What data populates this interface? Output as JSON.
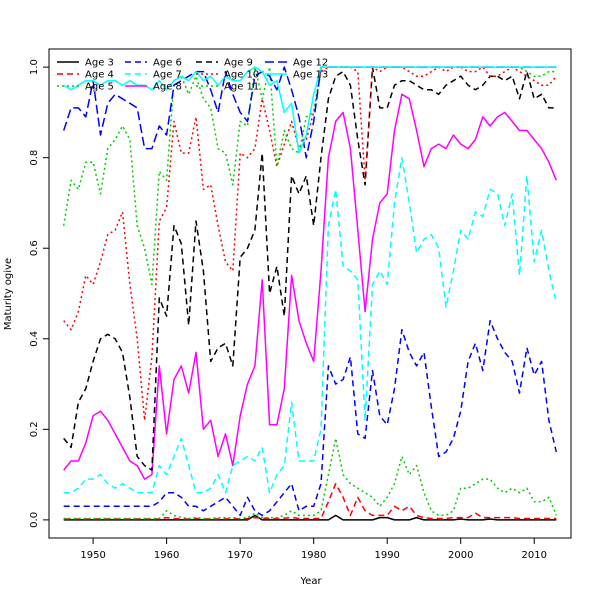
{
  "chart_data": {
    "type": "line",
    "title": "",
    "xlabel": "Year",
    "ylabel": "Maturity ogive",
    "xlim": [
      1944,
      2015
    ],
    "ylim": [
      -0.04,
      1.04
    ],
    "xticks": [
      1950,
      1960,
      1970,
      1980,
      1990,
      2000,
      2010
    ],
    "yticks": [
      0.0,
      0.2,
      0.4,
      0.6,
      0.8,
      1.0
    ],
    "ytick_labels": [
      "0.0",
      "0.2",
      "0.4",
      "0.6",
      "0.8",
      "1.0"
    ],
    "grid": false,
    "legend_position": "top-left",
    "years": [
      1946,
      1947,
      1948,
      1949,
      1950,
      1951,
      1952,
      1953,
      1954,
      1955,
      1956,
      1957,
      1958,
      1959,
      1960,
      1961,
      1962,
      1963,
      1964,
      1965,
      1966,
      1967,
      1968,
      1969,
      1970,
      1971,
      1972,
      1973,
      1974,
      1975,
      1976,
      1977,
      1978,
      1979,
      1980,
      1981,
      1982,
      1983,
      1984,
      1985,
      1986,
      1987,
      1988,
      1989,
      1990,
      1991,
      1992,
      1993,
      1994,
      1995,
      1996,
      1997,
      1998,
      1999,
      2000,
      2001,
      2002,
      2003,
      2004,
      2005,
      2006,
      2007,
      2008,
      2009,
      2010,
      2011,
      2012,
      2013
    ],
    "series": [
      {
        "name": "Age 3",
        "color": "#000000",
        "dash": "solid",
        "values": [
          0,
          0,
          0,
          0,
          0,
          0,
          0,
          0,
          0,
          0,
          0,
          0,
          0,
          0,
          0,
          0,
          0,
          0,
          0,
          0,
          0,
          0,
          0,
          0,
          0,
          0,
          0.01,
          0,
          0,
          0,
          0,
          0,
          0,
          0,
          0,
          0,
          0,
          0.01,
          0,
          0,
          0,
          0,
          0,
          0.005,
          0.005,
          0,
          0,
          0,
          0.005,
          0,
          0,
          0,
          0,
          0,
          0.002,
          0,
          0,
          0,
          0.002,
          0,
          0,
          0,
          0,
          0,
          0,
          0,
          0,
          0
        ]
      },
      {
        "name": "Age 4",
        "color": "#ff0000",
        "dash": "dashed",
        "values": [
          0.002,
          0.002,
          0.002,
          0.002,
          0.002,
          0.002,
          0.002,
          0.002,
          0.002,
          0.002,
          0.002,
          0.002,
          0.002,
          0.002,
          0.005,
          0.003,
          0.002,
          0.002,
          0.003,
          0.002,
          0.002,
          0.002,
          0.002,
          0.003,
          0.002,
          0.003,
          0.005,
          0.004,
          0.003,
          0.003,
          0.004,
          0.005,
          0.003,
          0.003,
          0.003,
          0.003,
          0.04,
          0.08,
          0.05,
          0.01,
          0.05,
          0.02,
          0.01,
          0.01,
          0.01,
          0.03,
          0.02,
          0.03,
          0.01,
          0.005,
          0.003,
          0.003,
          0.003,
          0.005,
          0.005,
          0.005,
          0.015,
          0.005,
          0.005,
          0.005,
          0.005,
          0.005,
          0.003,
          0.003,
          0.003,
          0.003,
          0.003,
          0.003
        ]
      },
      {
        "name": "Age 5",
        "color": "#00cc00",
        "dash": "dotted",
        "values": [
          0.003,
          0.003,
          0.003,
          0.003,
          0.003,
          0.003,
          0.003,
          0.003,
          0.003,
          0.003,
          0.003,
          0.003,
          0.003,
          0.003,
          0.02,
          0.01,
          0.005,
          0.003,
          0.005,
          0.003,
          0.003,
          0.005,
          0.005,
          0.005,
          0.003,
          0.005,
          0.015,
          0.005,
          0.005,
          0.005,
          0.01,
          0.02,
          0.01,
          0.01,
          0.01,
          0.02,
          0.1,
          0.18,
          0.1,
          0.08,
          0.07,
          0.06,
          0.05,
          0.03,
          0.05,
          0.08,
          0.14,
          0.1,
          0.12,
          0.06,
          0.02,
          0.01,
          0.01,
          0.02,
          0.07,
          0.07,
          0.08,
          0.09,
          0.09,
          0.07,
          0.06,
          0.07,
          0.06,
          0.07,
          0.04,
          0.04,
          0.05,
          0.01
        ]
      },
      {
        "name": "Age 6",
        "color": "#0000ff",
        "dash": "dashed",
        "values": [
          0.03,
          0.03,
          0.03,
          0.03,
          0.03,
          0.03,
          0.03,
          0.03,
          0.03,
          0.03,
          0.03,
          0.03,
          0.03,
          0.04,
          0.06,
          0.06,
          0.05,
          0.03,
          0.03,
          0.02,
          0.03,
          0.04,
          0.05,
          0.03,
          0.01,
          0.05,
          0.02,
          0.01,
          0.02,
          0.04,
          0.06,
          0.08,
          0.02,
          0.03,
          0.03,
          0.08,
          0.34,
          0.3,
          0.31,
          0.36,
          0.19,
          0.18,
          0.33,
          0.23,
          0.21,
          0.29,
          0.42,
          0.37,
          0.34,
          0.37,
          0.25,
          0.14,
          0.15,
          0.18,
          0.24,
          0.35,
          0.39,
          0.33,
          0.44,
          0.4,
          0.37,
          0.35,
          0.28,
          0.38,
          0.32,
          0.35,
          0.22,
          0.15
        ]
      },
      {
        "name": "Age 7",
        "color": "#00ffff",
        "dash": "dashed",
        "values": [
          0.06,
          0.06,
          0.07,
          0.09,
          0.09,
          0.1,
          0.08,
          0.07,
          0.08,
          0.07,
          0.06,
          0.06,
          0.06,
          0.12,
          0.1,
          0.14,
          0.18,
          0.12,
          0.06,
          0.06,
          0.07,
          0.1,
          0.06,
          0.12,
          0.13,
          0.14,
          0.13,
          0.16,
          0.06,
          0.1,
          0.12,
          0.26,
          0.13,
          0.13,
          0.13,
          0.2,
          0.65,
          0.73,
          0.56,
          0.55,
          0.53,
          0.22,
          0.52,
          0.55,
          0.52,
          0.7,
          0.8,
          0.7,
          0.59,
          0.62,
          0.63,
          0.6,
          0.47,
          0.55,
          0.64,
          0.62,
          0.68,
          0.67,
          0.73,
          0.72,
          0.65,
          0.72,
          0.54,
          0.76,
          0.57,
          0.64,
          0.55,
          0.48
        ]
      },
      {
        "name": "Age 8",
        "color": "#ff00ff",
        "dash": "solid",
        "values": [
          0.11,
          0.13,
          0.13,
          0.17,
          0.23,
          0.24,
          0.22,
          0.19,
          0.16,
          0.13,
          0.12,
          0.09,
          0.1,
          0.34,
          0.19,
          0.31,
          0.34,
          0.28,
          0.37,
          0.2,
          0.22,
          0.14,
          0.19,
          0.12,
          0.23,
          0.3,
          0.34,
          0.53,
          0.21,
          0.21,
          0.29,
          0.54,
          0.44,
          0.39,
          0.35,
          0.55,
          0.8,
          0.88,
          0.9,
          0.82,
          0.64,
          0.46,
          0.62,
          0.7,
          0.72,
          0.86,
          0.94,
          0.93,
          0.86,
          0.78,
          0.82,
          0.83,
          0.82,
          0.85,
          0.83,
          0.82,
          0.84,
          0.89,
          0.87,
          0.89,
          0.9,
          0.88,
          0.86,
          0.86,
          0.84,
          0.82,
          0.79,
          0.75
        ]
      },
      {
        "name": "Age 9",
        "color": "#000000",
        "dash": "dashed",
        "values": [
          0.18,
          0.16,
          0.26,
          0.29,
          0.35,
          0.4,
          0.41,
          0.4,
          0.37,
          0.27,
          0.14,
          0.12,
          0.11,
          0.49,
          0.45,
          0.65,
          0.61,
          0.43,
          0.66,
          0.55,
          0.35,
          0.38,
          0.39,
          0.34,
          0.58,
          0.6,
          0.64,
          0.81,
          0.5,
          0.56,
          0.45,
          0.76,
          0.72,
          0.76,
          0.65,
          0.8,
          0.93,
          0.98,
          0.99,
          0.96,
          0.84,
          0.74,
          1.0,
          0.91,
          0.91,
          0.96,
          0.97,
          0.97,
          0.96,
          0.95,
          0.95,
          0.94,
          0.96,
          0.97,
          0.98,
          0.96,
          0.95,
          0.96,
          0.98,
          0.98,
          0.97,
          0.98,
          0.93,
          0.99,
          0.93,
          0.94,
          0.91,
          0.91
        ]
      },
      {
        "name": "Age 10",
        "color": "#ff0000",
        "dash": "dotted",
        "values": [
          0.44,
          0.42,
          0.46,
          0.54,
          0.52,
          0.57,
          0.63,
          0.64,
          0.68,
          0.52,
          0.4,
          0.22,
          0.36,
          0.66,
          0.69,
          0.88,
          0.81,
          0.81,
          0.89,
          0.73,
          0.74,
          0.65,
          0.57,
          0.55,
          0.81,
          0.8,
          0.82,
          0.93,
          0.86,
          0.78,
          0.83,
          0.88,
          0.82,
          0.84,
          0.9,
          0.99,
          1.0,
          1.0,
          1.0,
          1.0,
          0.99,
          0.75,
          1.0,
          0.99,
          1.0,
          1.0,
          1.0,
          0.99,
          0.98,
          0.98,
          0.99,
          1.0,
          0.99,
          1.0,
          1.0,
          0.99,
          0.99,
          1.0,
          0.98,
          0.98,
          0.99,
          1.0,
          0.99,
          0.98,
          0.97,
          0.96,
          0.96,
          0.98
        ]
      },
      {
        "name": "Age 11",
        "color": "#00cc00",
        "dash": "dotted",
        "values": [
          0.65,
          0.75,
          0.73,
          0.79,
          0.79,
          0.72,
          0.82,
          0.84,
          0.87,
          0.84,
          0.65,
          0.6,
          0.52,
          0.77,
          0.75,
          0.97,
          0.98,
          0.94,
          0.98,
          0.93,
          0.91,
          0.82,
          0.81,
          0.74,
          0.88,
          0.87,
          1.0,
          0.93,
          1.0,
          0.78,
          0.86,
          0.82,
          0.81,
          0.89,
          0.9,
          1.0,
          1.0,
          1.0,
          1.0,
          1.0,
          1.0,
          1.0,
          1.0,
          1.0,
          1.0,
          1.0,
          1.0,
          1.0,
          1.0,
          1.0,
          1.0,
          1.0,
          1.0,
          1.0,
          1.0,
          1.0,
          1.0,
          1.0,
          1.0,
          1.0,
          1.0,
          1.0,
          1.0,
          0.99,
          0.98,
          0.98,
          0.99,
          0.99
        ]
      },
      {
        "name": "Age 12",
        "color": "#0000ff",
        "dash": "longdash",
        "values": [
          0.86,
          0.91,
          0.91,
          0.89,
          0.97,
          0.85,
          0.92,
          0.94,
          0.93,
          0.92,
          0.91,
          0.82,
          0.82,
          0.87,
          0.85,
          0.96,
          0.97,
          0.98,
          0.99,
          0.99,
          0.95,
          0.9,
          0.99,
          0.94,
          0.9,
          0.88,
          0.98,
          0.99,
          0.98,
          0.95,
          1.0,
          0.95,
          0.89,
          0.8,
          0.88,
          1.0,
          1.0,
          1.0,
          1.0,
          1.0,
          1.0,
          1.0,
          1.0,
          1.0,
          1.0,
          1.0,
          1.0,
          1.0,
          1.0,
          1.0,
          1.0,
          1.0,
          1.0,
          1.0,
          1.0,
          1.0,
          1.0,
          1.0,
          1.0,
          1.0,
          1.0,
          1.0,
          1.0,
          1.0,
          1.0,
          1.0,
          1.0,
          1.0
        ]
      },
      {
        "name": "Age 13",
        "color": "#00ffff",
        "dash": "solid",
        "values": [
          0.96,
          0.95,
          0.96,
          0.97,
          0.97,
          0.96,
          0.97,
          0.97,
          0.96,
          0.97,
          0.96,
          0.96,
          0.95,
          0.97,
          0.95,
          0.97,
          0.98,
          0.97,
          0.99,
          0.97,
          0.98,
          0.96,
          0.98,
          0.97,
          0.97,
          0.99,
          1.0,
          0.99,
          0.96,
          0.97,
          0.9,
          0.92,
          0.81,
          0.85,
          0.94,
          1.0,
          1.0,
          1.0,
          1.0,
          1.0,
          1.0,
          1.0,
          1.0,
          1.0,
          1.0,
          1.0,
          1.0,
          1.0,
          1.0,
          1.0,
          1.0,
          1.0,
          1.0,
          1.0,
          1.0,
          1.0,
          1.0,
          1.0,
          1.0,
          1.0,
          1.0,
          1.0,
          1.0,
          1.0,
          1.0,
          1.0,
          1.0,
          1.0
        ]
      }
    ]
  }
}
